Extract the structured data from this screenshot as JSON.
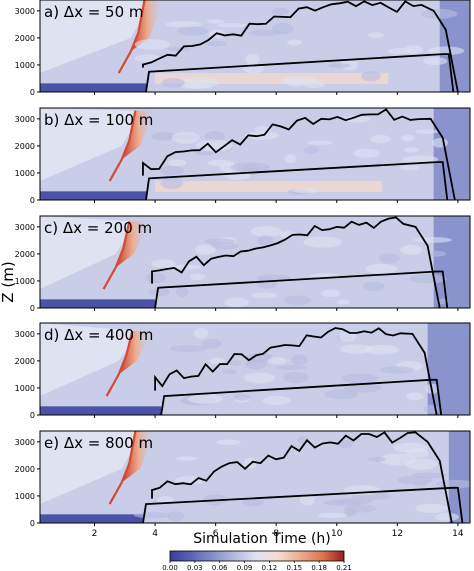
{
  "chart_data": {
    "type": "heatmap",
    "y_axis_label": "Z (m)",
    "x_axis_label": "Simulation Time (h)",
    "x_ticks": [
      "2",
      "4",
      "6",
      "8",
      "10",
      "12",
      "14"
    ],
    "x_tick_values": [
      2,
      4,
      6,
      8,
      10,
      12,
      14
    ],
    "y_ticks": [
      "0",
      "1000",
      "2000",
      "3000"
    ],
    "y_tick_values": [
      0,
      1000,
      2000,
      3000
    ],
    "xlim": [
      0.2,
      14.4
    ],
    "ylim": [
      0,
      3400
    ],
    "colorbar_ticks": [
      "0.00",
      "0.03",
      "0.06",
      "0.09",
      "0.12",
      "0.15",
      "0.18",
      "0.21"
    ],
    "colorbar_range": [
      0.0,
      0.21
    ],
    "colormap": [
      "#3b3d9e",
      "#5b63b5",
      "#8790cb",
      "#b7bde0",
      "#dfe2f1",
      "#f4ddd2",
      "#eeab8e",
      "#e07350",
      "#c33a2c",
      "#9b1b22"
    ],
    "panels": [
      {
        "label": "a) Δx = 50 m",
        "ml_start": 3.7,
        "ml_end": 13.7,
        "ml_top_start": 750,
        "ml_top_end": 1400,
        "cloud_start": 3.6,
        "cloud_end": 14.0,
        "front_start": 3.2,
        "front_h": 3400
      },
      {
        "label": "b) Δx = 100 m",
        "ml_start": 3.7,
        "ml_end": 13.5,
        "ml_top_start": 800,
        "ml_top_end": 1400,
        "cloud_start": 3.6,
        "cloud_end": 13.9,
        "front_start": 2.9,
        "front_h": 3300
      },
      {
        "label": "c) Δx = 200 m",
        "ml_start": 4.0,
        "ml_end": 13.5,
        "ml_top_start": 750,
        "ml_top_end": 1350,
        "cloud_start": 3.9,
        "cloud_end": 13.4,
        "front_start": 2.7,
        "front_h": 3200
      },
      {
        "label": "d) Δx = 400 m",
        "ml_start": 4.2,
        "ml_end": 13.3,
        "ml_top_start": 700,
        "ml_top_end": 1300,
        "cloud_start": 4.0,
        "cloud_end": 13.3,
        "front_start": 2.8,
        "front_h": 3100
      },
      {
        "label": "e) Δx = 800 m",
        "ml_start": 3.6,
        "ml_end": 14.0,
        "ml_top_start": 700,
        "ml_top_end": 1300,
        "cloud_start": 3.9,
        "cloud_end": 13.8,
        "front_start": 2.9,
        "front_h": 3400
      }
    ]
  }
}
